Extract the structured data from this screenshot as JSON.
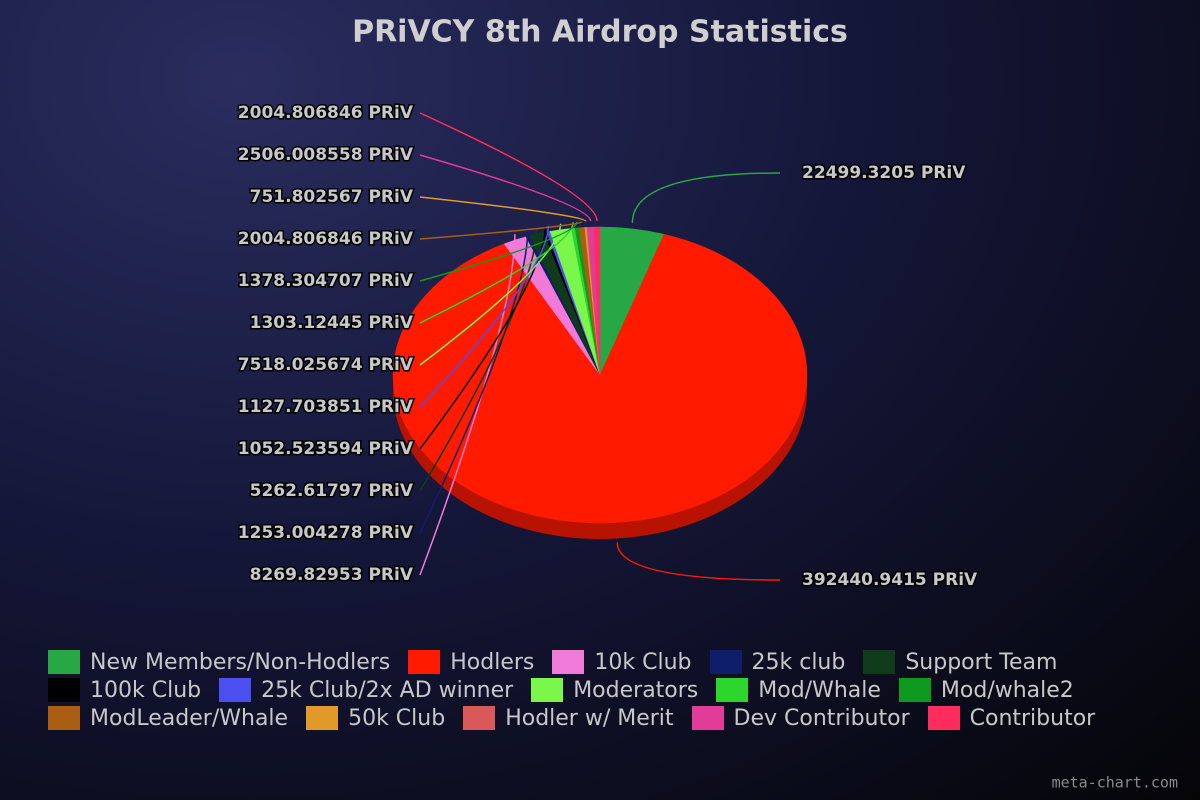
{
  "chart_data": {
    "type": "pie3d",
    "title": "PRiVCY 8th Airdrop Statistics",
    "categories": [
      "New Members/Non-Hodlers",
      "Hodlers",
      "10k Club",
      "25k club",
      "Support Team",
      "100k Club",
      "25k Club/2x AD winner",
      "Moderators",
      "Mod/Whale",
      "Mod/whale2",
      "ModLeader/Whale",
      "50k Club",
      "Hodler w/ Merit",
      "Dev Contributor",
      "Contributor"
    ],
    "values": [
      22499.3205,
      392440.9415,
      8269.82953,
      1253.004278,
      5262.61797,
      1052.523594,
      1127.703851,
      7518.025674,
      1303.12445,
      1378.304707,
      2004.806846,
      751.802567,
      null,
      2506.008558,
      2004.806846
    ],
    "value_labels": [
      "22499.3205 PRiV",
      "392440.9415 PRiV",
      "8269.82953 PRiV",
      "1253.004278 PRiV",
      "5262.61797 PRiV",
      "1052.523594 PRiV",
      "1127.703851 PRiV",
      "7518.025674 PRiV",
      "1303.12445 PRiV",
      "1378.304707 PRiV",
      "2004.806846 PRiV",
      "751.802567 PRiV",
      null,
      "2506.008558 PRiV",
      "2004.806846 PRiV"
    ],
    "colors": [
      "#27a844",
      "#ff1a00",
      "#f07ad8",
      "#0f1e6a",
      "#0f3b1a",
      "#000000",
      "#4b4ff0",
      "#7af74a",
      "#2cd62c",
      "#0e9a1e",
      "#a95e14",
      "#e09a2a",
      "#d9585a",
      "#e03c98",
      "#ff2d5e"
    ],
    "legend": "bottom",
    "watermark": "meta-chart.com"
  }
}
